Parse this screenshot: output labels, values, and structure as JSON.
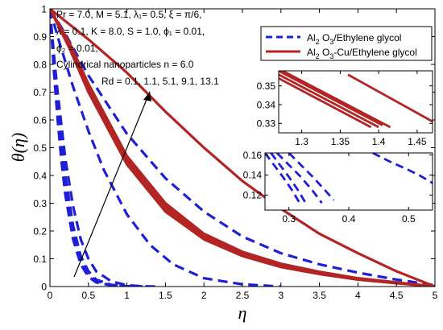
{
  "chart_data": {
    "type": "line",
    "main": {
      "xlabel": "η",
      "ylabel": "θ(η)",
      "xlim": [
        0,
        5
      ],
      "ylim": [
        0,
        1
      ],
      "xticks": [
        "0",
        "0.5",
        "1",
        "1.5",
        "2",
        "2.5",
        "3",
        "3.5",
        "4",
        "4.5",
        "5"
      ],
      "yticks": [
        "0",
        "0.1",
        "0.2",
        "0.3",
        "0.4",
        "0.5",
        "0.6",
        "0.7",
        "0.8",
        "0.9",
        "1"
      ],
      "series": [
        {
          "name": "Al2O3/Ethylene glycol",
          "style": "dashed",
          "color": "#1f1fd6",
          "curves": [
            {
              "x": [
                0,
                0.05,
                0.1,
                0.15,
                0.2,
                0.3,
                0.4,
                0.5,
                0.6,
                0.8,
                1.0,
                1.2
              ],
              "y": [
                1,
                0.78,
                0.6,
                0.45,
                0.33,
                0.17,
                0.08,
                0.035,
                0.015,
                0.004,
                0.001,
                0
              ]
            },
            {
              "x": [
                0,
                0.05,
                0.1,
                0.15,
                0.2,
                0.3,
                0.4,
                0.5,
                0.6,
                0.8,
                1.0,
                1.2
              ],
              "y": [
                1,
                0.8,
                0.63,
                0.48,
                0.36,
                0.19,
                0.095,
                0.045,
                0.02,
                0.005,
                0.001,
                0
              ]
            },
            {
              "x": [
                0,
                0.05,
                0.1,
                0.15,
                0.2,
                0.3,
                0.4,
                0.5,
                0.6,
                0.8,
                1.0,
                1.2
              ],
              "y": [
                1,
                0.82,
                0.66,
                0.52,
                0.4,
                0.22,
                0.11,
                0.055,
                0.025,
                0.006,
                0.001,
                0
              ]
            },
            {
              "x": [
                0,
                0.05,
                0.1,
                0.2,
                0.3,
                0.4,
                0.5,
                0.6,
                0.8,
                1.0,
                1.2,
                1.4
              ],
              "y": [
                1,
                0.84,
                0.7,
                0.46,
                0.29,
                0.17,
                0.1,
                0.055,
                0.018,
                0.005,
                0.001,
                0
              ]
            },
            {
              "x": [
                0,
                0.1,
                0.2,
                0.3,
                0.5,
                0.7,
                1.0,
                1.3,
                1.6,
                2.0,
                2.5,
                3.0
              ],
              "y": [
                1,
                0.9,
                0.81,
                0.72,
                0.56,
                0.42,
                0.26,
                0.15,
                0.08,
                0.03,
                0.008,
                0
              ]
            },
            {
              "x": [
                0,
                0.2,
                0.5,
                1.0,
                1.5,
                2.0,
                2.5,
                3.0,
                3.5,
                4.0,
                4.5,
                5.0
              ],
              "y": [
                1,
                0.91,
                0.76,
                0.55,
                0.39,
                0.27,
                0.18,
                0.12,
                0.08,
                0.05,
                0.025,
                0.005
              ]
            }
          ]
        },
        {
          "name": "Al2O3-Cu/Ethylene glycol",
          "style": "solid",
          "color": "#b32424",
          "curves": [
            {
              "x": [
                0,
                0.25,
                0.5,
                1.0,
                1.5,
                2.0,
                2.5,
                3.0,
                3.5,
                4.0,
                4.5,
                5.0
              ],
              "y": [
                1,
                0.86,
                0.7,
                0.44,
                0.27,
                0.17,
                0.11,
                0.07,
                0.045,
                0.025,
                0.012,
                0
              ]
            },
            {
              "x": [
                0,
                0.25,
                0.5,
                1.0,
                1.5,
                2.0,
                2.5,
                3.0,
                3.5,
                4.0,
                4.5,
                5.0
              ],
              "y": [
                1,
                0.87,
                0.71,
                0.45,
                0.28,
                0.175,
                0.115,
                0.075,
                0.048,
                0.027,
                0.013,
                0
              ]
            },
            {
              "x": [
                0,
                0.25,
                0.5,
                1.0,
                1.5,
                2.0,
                2.5,
                3.0,
                3.5,
                4.0,
                4.5,
                5.0
              ],
              "y": [
                1,
                0.875,
                0.72,
                0.46,
                0.29,
                0.18,
                0.12,
                0.078,
                0.05,
                0.028,
                0.014,
                0
              ]
            },
            {
              "x": [
                0,
                0.25,
                0.5,
                1.0,
                1.5,
                2.0,
                2.5,
                3.0,
                3.5,
                4.0,
                4.5,
                5.0
              ],
              "y": [
                1,
                0.88,
                0.73,
                0.47,
                0.3,
                0.19,
                0.125,
                0.082,
                0.053,
                0.03,
                0.015,
                0
              ]
            },
            {
              "x": [
                0,
                0.5,
                1.0,
                1.5,
                2.0,
                2.5,
                3.0,
                3.5,
                4.0,
                4.5,
                5.0
              ],
              "y": [
                1,
                0.89,
                0.77,
                0.63,
                0.5,
                0.38,
                0.28,
                0.19,
                0.12,
                0.055,
                0
              ]
            }
          ]
        }
      ]
    },
    "inset_top": {
      "xlim": [
        1.27,
        1.47
      ],
      "ylim": [
        0.325,
        0.358
      ],
      "xticks": [
        "1.3",
        "1.35",
        "1.4",
        "1.45"
      ],
      "yticks": [
        "0.33",
        "0.34",
        "0.35"
      ],
      "series": [
        {
          "name": "Al2O3-Cu/Ethylene glycol",
          "style": "solid",
          "color": "#b32424",
          "curves": [
            {
              "x": [
                1.27,
                1.39
              ],
              "y": [
                0.354,
                0.328
              ]
            },
            {
              "x": [
                1.27,
                1.4
              ],
              "y": [
                0.356,
                0.328
              ]
            },
            {
              "x": [
                1.27,
                1.405
              ],
              "y": [
                0.358,
                0.329
              ]
            },
            {
              "x": [
                1.275,
                1.415
              ],
              "y": [
                0.358,
                0.328
              ]
            },
            {
              "x": [
                1.36,
                1.47
              ],
              "y": [
                0.356,
                0.331
              ]
            }
          ]
        }
      ]
    },
    "inset_bottom": {
      "xlim": [
        0.26,
        0.54
      ],
      "ylim": [
        0.105,
        0.162
      ],
      "xticks": [
        "0.3",
        "0.4",
        "0.5"
      ],
      "yticks": [
        "0.12",
        "0.14",
        "0.16"
      ],
      "series": [
        {
          "name": "Al2O3/Ethylene glycol",
          "style": "dashed",
          "color": "#1f1fd6",
          "curves": [
            {
              "x": [
                0.26,
                0.275,
                0.29,
                0.305,
                0.32
              ],
              "y": [
                0.162,
                0.15,
                0.138,
                0.125,
                0.11
              ]
            },
            {
              "x": [
                0.27,
                0.285,
                0.3,
                0.315,
                0.33
              ],
              "y": [
                0.162,
                0.15,
                0.138,
                0.125,
                0.11
              ]
            },
            {
              "x": [
                0.28,
                0.3,
                0.32,
                0.34,
                0.355
              ],
              "y": [
                0.162,
                0.15,
                0.138,
                0.124,
                0.112
              ]
            },
            {
              "x": [
                0.3,
                0.32,
                0.34,
                0.36,
                0.375
              ],
              "y": [
                0.162,
                0.15,
                0.138,
                0.125,
                0.115
              ]
            },
            {
              "x": [
                0.44,
                0.47,
                0.5,
                0.52,
                0.54
              ],
              "y": [
                0.162,
                0.153,
                0.145,
                0.139,
                0.132
              ]
            }
          ]
        }
      ]
    },
    "legend": {
      "placement": "top-right",
      "entries": [
        {
          "main": "Al",
          "sub": "2",
          "rest": " O",
          "sub2": "3",
          "tail": "/Ethylene glycol",
          "style": "dashed",
          "color": "#1f1fd6"
        },
        {
          "main": "Al",
          "sub": "2",
          "rest": " O",
          "sub2": "3",
          "tail": "-Cu/Ethylene glycol",
          "style": "solid",
          "color": "#b32424"
        }
      ]
    },
    "annotations": {
      "params_line1": "Pr = 7.0, M = 5.1, λ₁= 0.5, ξ = π/6,",
      "params_line2": "λ = 0.1, K = 8.0, S = 1.0, ϕ₁ = 0.01,",
      "params_line3": "ϕ₂ = 0.01,",
      "params_line4": "Cylindrical nanoparticles n = 6.0",
      "arrow_label": "Rd = 0.1, 1.1, 5.1, 9.1, 13.1"
    }
  }
}
